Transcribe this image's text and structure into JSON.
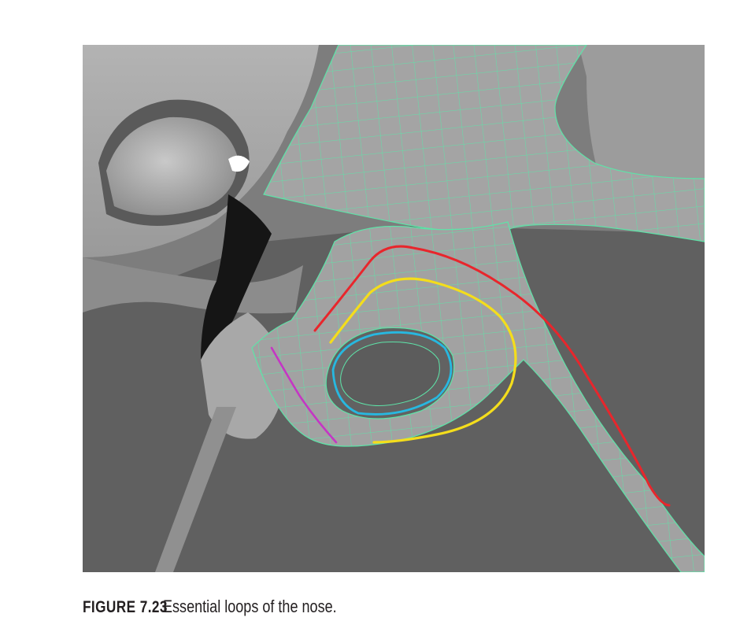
{
  "figure": {
    "icon": "nose-wireframe-render",
    "loop_colors": {
      "red": "#e8262c",
      "yellow": "#f4dd1c",
      "cyan": "#27b8e0",
      "magenta": "#c436c4",
      "wire": "#5ee3a8"
    }
  },
  "caption": {
    "label": "FIGURE  7.23",
    "text": "Essential loops of the nose."
  }
}
